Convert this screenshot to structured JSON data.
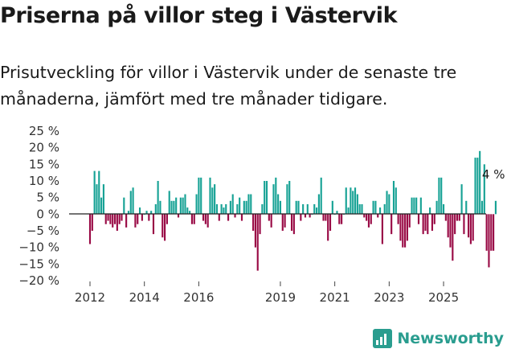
{
  "header": {
    "title": "Priserna på villor steg i Västervik",
    "subtitle": "Prisutveckling för villor i Västervik under de senaste tre månaderna, jämfört med tre månader tidigare."
  },
  "brand": {
    "name": "Newsworthy",
    "icon": "chart-bars-icon",
    "color": "#2a9d8f"
  },
  "chart_data": {
    "type": "bar",
    "title": "",
    "xlabel": "",
    "ylabel": "",
    "ylim": [
      -20,
      25
    ],
    "yticks": [
      25,
      20,
      15,
      10,
      5,
      0,
      -5,
      -10,
      -15,
      -20
    ],
    "ytick_labels": [
      "25 %",
      "20 %",
      "15 %",
      "10 %",
      "5 %",
      "0 %",
      "−5 %",
      "−10 %",
      "−15 %",
      "−20 %"
    ],
    "xticks": [
      {
        "label": "2012",
        "year": 2012
      },
      {
        "label": "2014",
        "year": 2014
      },
      {
        "label": "2016",
        "year": 2016
      },
      {
        "label": "2019",
        "year": 2019
      },
      {
        "label": "2021",
        "year": 2021
      },
      {
        "label": "2023",
        "year": 2023
      },
      {
        "label": "2025",
        "year": 2025
      }
    ],
    "start": "2012-01",
    "frequency": "monthly",
    "positive_color": "#17a295",
    "negative_color": "#990a45",
    "grid": false,
    "values": [
      -9,
      -5,
      13,
      9,
      13,
      5,
      9,
      -3,
      -2,
      -3,
      -4,
      -3,
      -5,
      -3,
      -2,
      5,
      -4,
      1,
      7,
      8,
      -4,
      -3,
      2,
      -2,
      0,
      1,
      -2,
      1,
      -6,
      3,
      10,
      4,
      -7,
      -8,
      -3,
      7,
      4,
      4,
      5,
      -1,
      5,
      5,
      6,
      2,
      1,
      -3,
      -3,
      6,
      11,
      11,
      -2,
      -3,
      -4,
      11,
      8,
      9,
      3,
      -2,
      3,
      2,
      3,
      -2,
      4,
      6,
      -1,
      3,
      5,
      -2,
      4,
      4,
      6,
      6,
      -5,
      -10,
      -17,
      -6,
      3,
      10,
      10,
      -2,
      -4,
      9,
      11,
      6,
      4,
      -5,
      -4,
      9,
      10,
      -5,
      -6,
      4,
      4,
      -2,
      3,
      -1,
      3,
      -1,
      0,
      3,
      2,
      6,
      11,
      -2,
      -2,
      -8,
      -5,
      4,
      0,
      1,
      -3,
      -3,
      0,
      8,
      2,
      8,
      7,
      8,
      6,
      3,
      3,
      -1,
      -2,
      -4,
      -3,
      4,
      4,
      -1,
      2,
      -9,
      3,
      7,
      6,
      -6,
      10,
      8,
      -3,
      -8,
      -10,
      -10,
      -8,
      -4,
      5,
      5,
      5,
      -3,
      5,
      -6,
      -5,
      -6,
      2,
      -5,
      -3,
      4,
      11,
      11,
      3,
      -2,
      -7,
      -10,
      -14,
      -6,
      -2,
      -2,
      9,
      -6,
      4,
      -7,
      -9,
      -8,
      17,
      17,
      19,
      4,
      15,
      -11,
      -16,
      -11,
      -11,
      4
    ],
    "annotations": [
      {
        "text": "4 %",
        "value": 4,
        "position": "last-bar"
      }
    ]
  }
}
